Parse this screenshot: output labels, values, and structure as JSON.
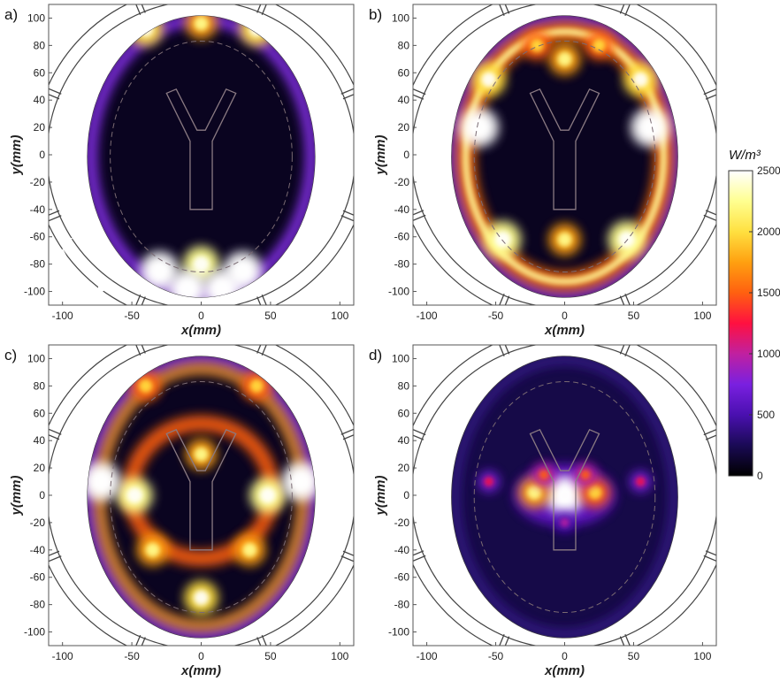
{
  "chart_data": {
    "type": "heatmap",
    "colorbar": {
      "unit_label": "W/m³",
      "range": [
        0,
        2500
      ],
      "ticks": [
        0,
        500,
        1000,
        1500,
        2000,
        2500
      ],
      "colormap": [
        "#000000",
        "#1a0a55",
        "#4a10b0",
        "#7a20e0",
        "#c020a0",
        "#ff1040",
        "#ff6010",
        "#ffa010",
        "#ffe040",
        "#ffff90",
        "#ffffff"
      ]
    },
    "panels": [
      {
        "label": "a)",
        "xlabel": "x(mm)",
        "ylabel": "y(mm)",
        "xticks": [
          -100,
          -50,
          0,
          50,
          100
        ],
        "yticks": [
          100,
          80,
          60,
          40,
          20,
          0,
          -20,
          -40,
          -60,
          -80,
          -100
        ],
        "xlim": [
          -110,
          110
        ],
        "ylim": [
          -110,
          110
        ],
        "axes_arrows": {
          "x": "x",
          "y": "y"
        },
        "hotspots": [
          {
            "x": -40,
            "y": 92,
            "value": 2000
          },
          {
            "x": 0,
            "y": 96,
            "value": 1700
          },
          {
            "x": 40,
            "y": 92,
            "value": 2000
          },
          {
            "x": -30,
            "y": -85,
            "value": 2500
          },
          {
            "x": 0,
            "y": -80,
            "value": 2200
          },
          {
            "x": 30,
            "y": -85,
            "value": 2500
          },
          {
            "x": -10,
            "y": -98,
            "value": 2500
          },
          {
            "x": 15,
            "y": -98,
            "value": 2500
          }
        ]
      },
      {
        "label": "b)",
        "xlabel": "x(mm)",
        "ylabel": "y(mm)",
        "xticks": [
          -100,
          -50,
          0,
          50,
          100
        ],
        "yticks": [
          100,
          80,
          60,
          40,
          20,
          0,
          -20,
          -40,
          -60,
          -80,
          -100
        ],
        "xlim": [
          -110,
          110
        ],
        "ylim": [
          -110,
          110
        ],
        "hotspots": [
          {
            "x": -62,
            "y": 20,
            "value": 2500
          },
          {
            "x": 62,
            "y": 20,
            "value": 2500
          },
          {
            "x": -55,
            "y": 55,
            "value": 2000
          },
          {
            "x": 55,
            "y": 55,
            "value": 2000
          },
          {
            "x": 0,
            "y": 70,
            "value": 1800
          },
          {
            "x": -45,
            "y": -62,
            "value": 2300
          },
          {
            "x": 45,
            "y": -62,
            "value": 2300
          },
          {
            "x": 0,
            "y": -62,
            "value": 1800
          },
          {
            "x": -20,
            "y": 80,
            "value": 1500
          },
          {
            "x": 25,
            "y": 80,
            "value": 1500
          }
        ]
      },
      {
        "label": "c)",
        "xlabel": "x(mm)",
        "ylabel": "y(mm)",
        "xticks": [
          -100,
          -50,
          0,
          50,
          100
        ],
        "yticks": [
          100,
          80,
          60,
          40,
          20,
          0,
          -20,
          -40,
          -60,
          -80,
          -100
        ],
        "xlim": [
          -110,
          110
        ],
        "ylim": [
          -110,
          110
        ],
        "hotspots": [
          {
            "x": -48,
            "y": 0,
            "value": 2200
          },
          {
            "x": 48,
            "y": 0,
            "value": 2200
          },
          {
            "x": -72,
            "y": 10,
            "value": 2500
          },
          {
            "x": 72,
            "y": 10,
            "value": 2500
          },
          {
            "x": 0,
            "y": 30,
            "value": 1700
          },
          {
            "x": -35,
            "y": -40,
            "value": 1800
          },
          {
            "x": 35,
            "y": -40,
            "value": 1800
          },
          {
            "x": 0,
            "y": -75,
            "value": 2000
          },
          {
            "x": -40,
            "y": 80,
            "value": 1600
          },
          {
            "x": 40,
            "y": 80,
            "value": 1600
          }
        ]
      },
      {
        "label": "d)",
        "xlabel": "x(mm)",
        "ylabel": "y(mm)",
        "xticks": [
          -100,
          -50,
          0,
          50,
          100
        ],
        "yticks": [
          100,
          80,
          60,
          40,
          20,
          0,
          -20,
          -40,
          -60,
          -80,
          -100
        ],
        "xlim": [
          -110,
          110
        ],
        "ylim": [
          -110,
          110
        ],
        "hotspots": [
          {
            "x": 0,
            "y": 0,
            "value": 2500
          },
          {
            "x": -22,
            "y": 2,
            "value": 1700
          },
          {
            "x": 22,
            "y": 2,
            "value": 1600
          },
          {
            "x": -15,
            "y": 15,
            "value": 900
          },
          {
            "x": 15,
            "y": 15,
            "value": 900
          },
          {
            "x": -55,
            "y": 10,
            "value": 700
          },
          {
            "x": 55,
            "y": 10,
            "value": 700
          },
          {
            "x": 0,
            "y": -20,
            "value": 600
          }
        ]
      }
    ]
  }
}
